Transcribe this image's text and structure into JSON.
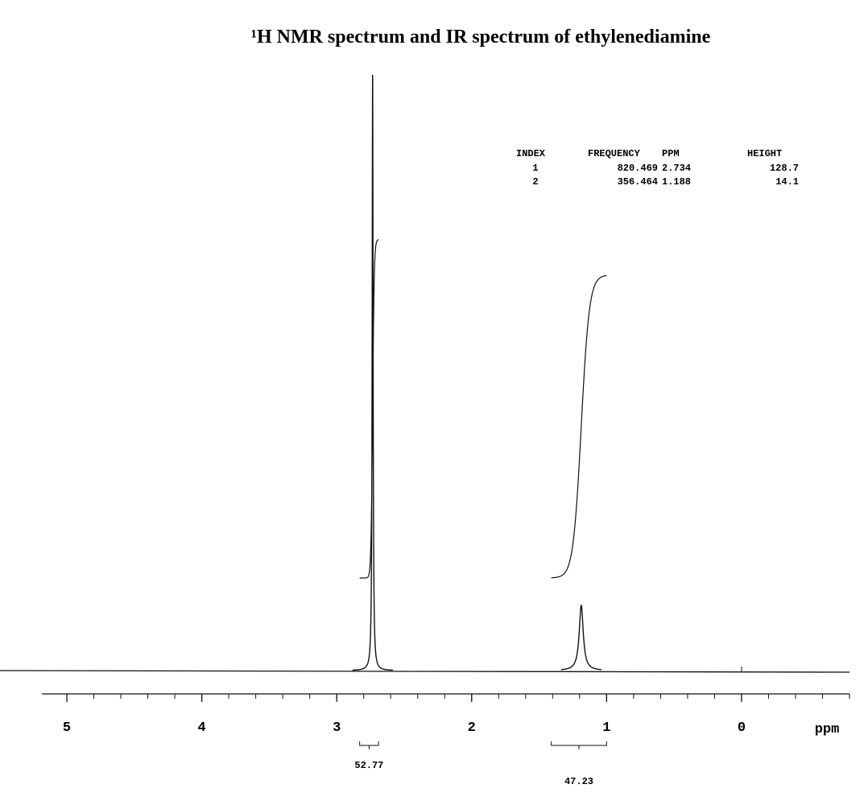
{
  "chart_data": {
    "type": "nmr",
    "title": "¹H NMR spectrum and IR spectrum of ethylenediamine",
    "x_label": "ppm",
    "xlim": [
      5.185,
      -0.8
    ],
    "xticks": [
      5,
      4,
      3,
      2,
      1,
      0
    ],
    "color": "#111111",
    "peak_table": {
      "columns": [
        "INDEX",
        "FREQUENCY",
        "PPM",
        "HEIGHT"
      ],
      "rows": [
        [
          1,
          820.469,
          2.734,
          128.7
        ],
        [
          2,
          356.464,
          1.188,
          14.1
        ]
      ]
    },
    "integrals": [
      {
        "region": [
          2.83,
          2.69
        ],
        "value": 52.77
      },
      {
        "region": [
          1.41,
          1.0
        ],
        "value": 47.23
      }
    ]
  }
}
